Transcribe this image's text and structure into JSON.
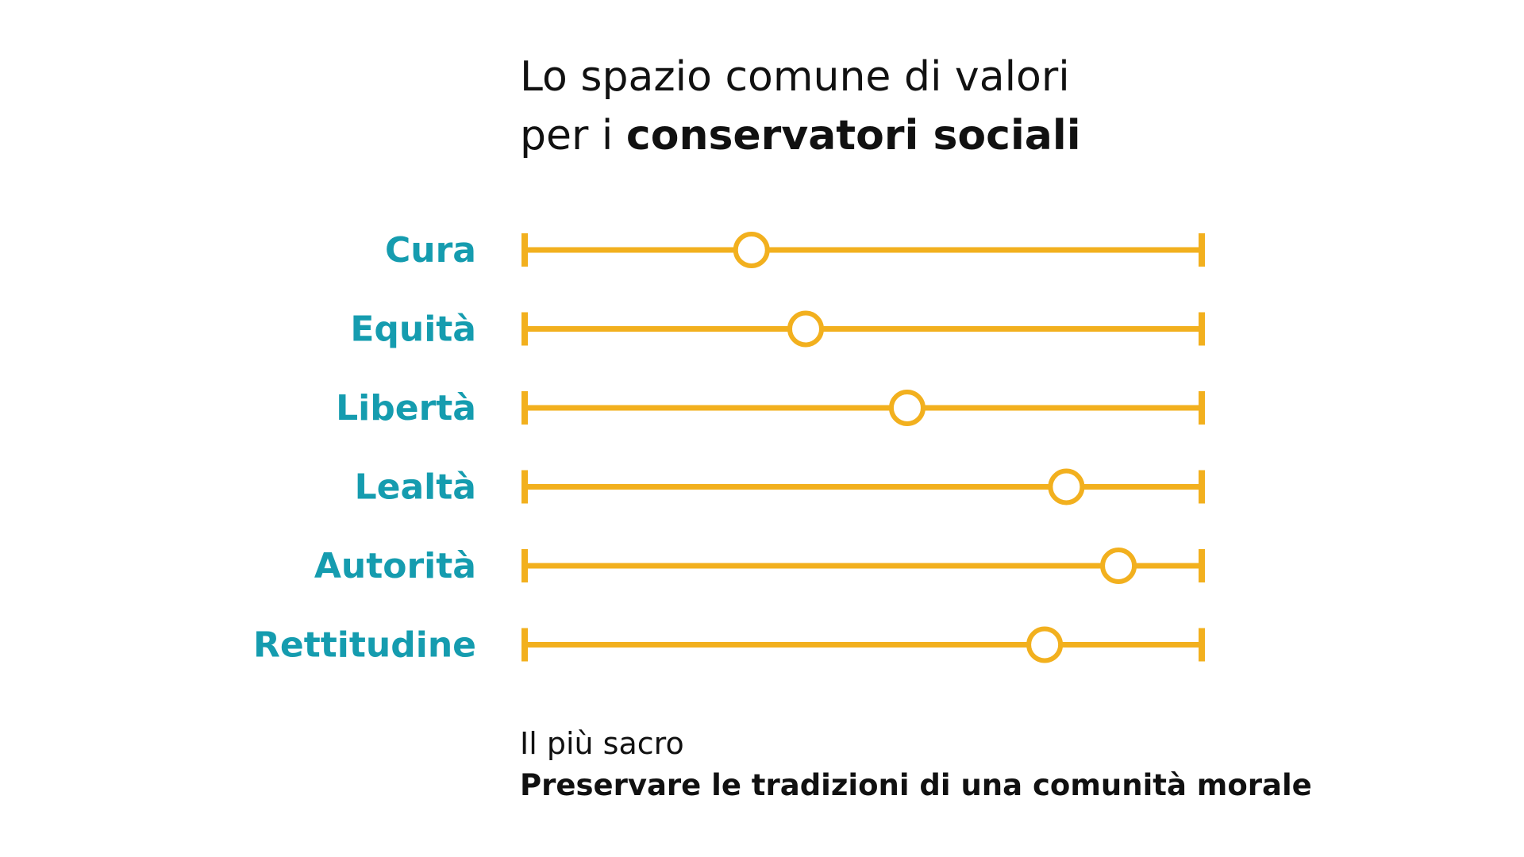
{
  "title": {
    "line1": "Lo spazio comune di valori",
    "line2_prefix": "per i ",
    "line2_bold": "conservatori sociali"
  },
  "footer": {
    "line1": "Il più sacro",
    "line2": "Preservare le tradizioni di una comunità morale"
  },
  "colors": {
    "track": "#F2B01E",
    "label": "#159CAF",
    "marker_fill": "#ffffff",
    "text": "#111111"
  },
  "chart_data": {
    "type": "scatter",
    "title": "Lo spazio comune di valori per i conservatori sociali",
    "categories": [
      "Cura",
      "Equità",
      "Libertà",
      "Lealtà",
      "Autorità",
      "Rettitudine"
    ],
    "values": [
      0.335,
      0.415,
      0.565,
      0.8,
      0.877,
      0.768
    ],
    "xlim": [
      0,
      1
    ],
    "grid": false,
    "legend": "none"
  }
}
